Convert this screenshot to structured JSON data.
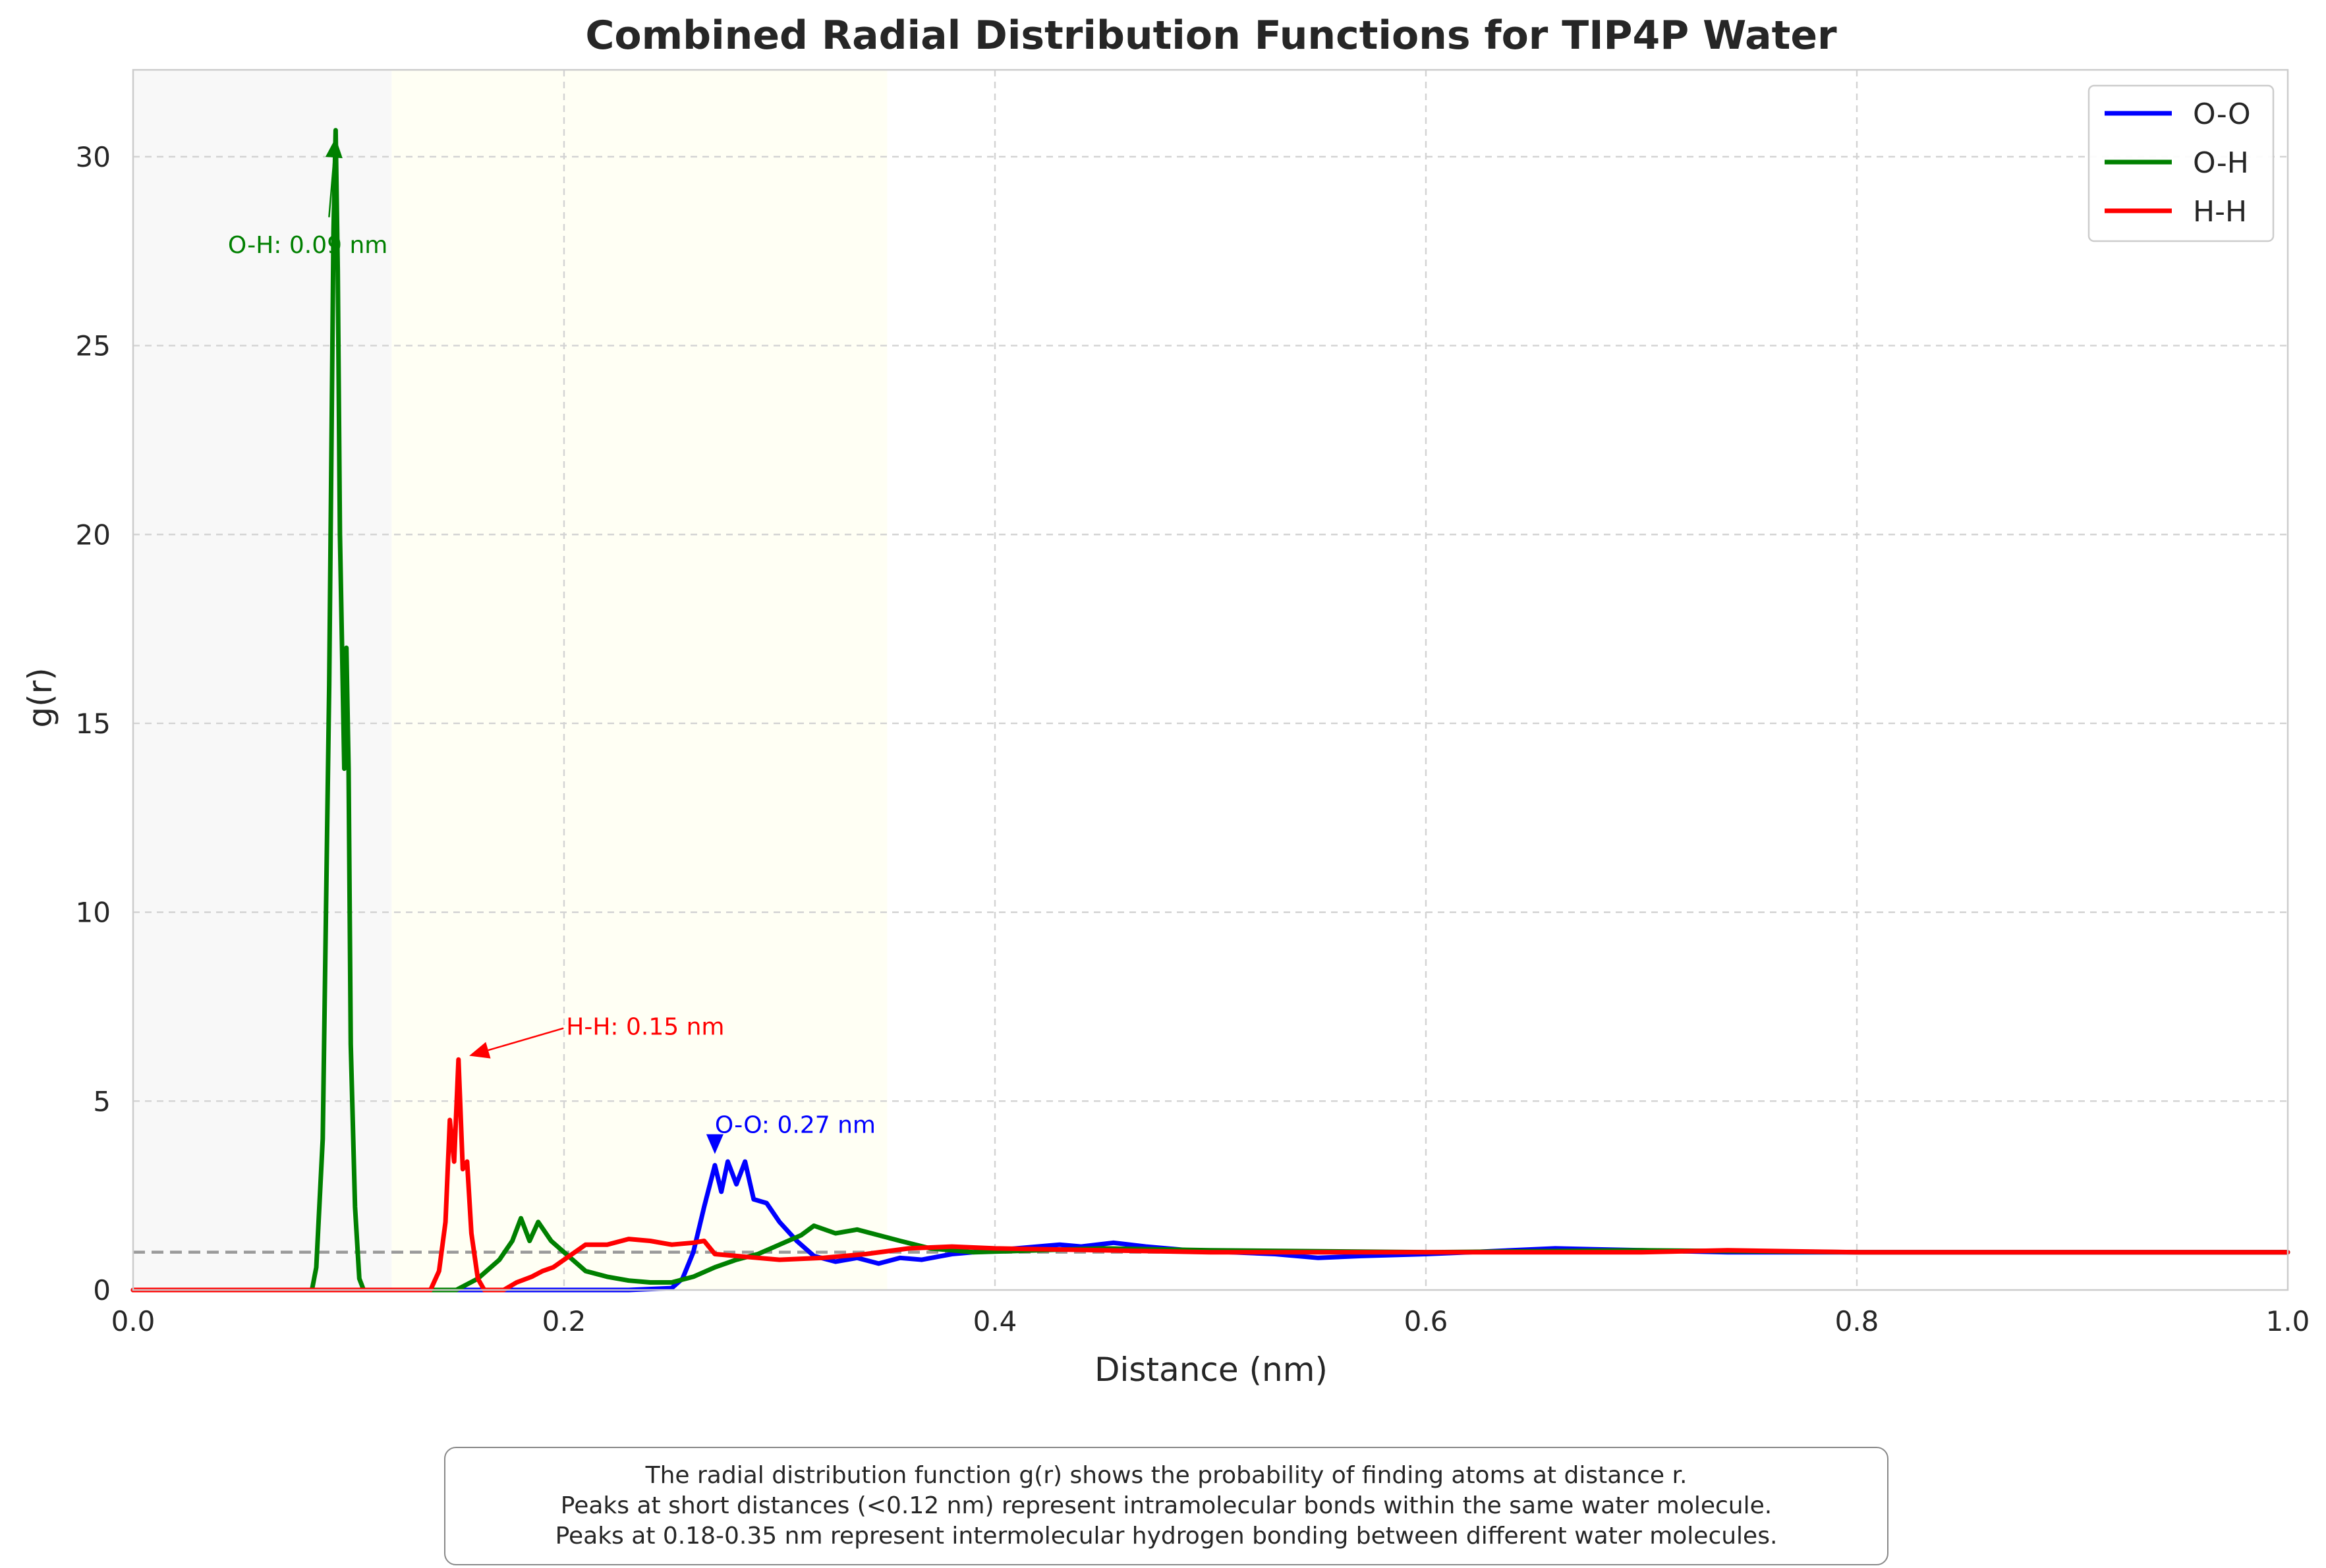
{
  "chart_data": {
    "type": "line",
    "title": "Combined Radial Distribution Functions for TIP4P Water",
    "xlabel": "Distance (nm)",
    "ylabel": "g(r)",
    "xlim": [
      0.0,
      1.0
    ],
    "ylim": [
      0,
      32.3
    ],
    "x_ticks": [
      0.0,
      0.2,
      0.4,
      0.6,
      0.8,
      1.0
    ],
    "x_tick_labels": [
      "0.0",
      "0.2",
      "0.4",
      "0.6",
      "0.8",
      "1.0"
    ],
    "y_ticks": [
      0,
      5,
      10,
      15,
      20,
      25,
      30
    ],
    "y_tick_labels": [
      "0",
      "5",
      "10",
      "15",
      "20",
      "25",
      "30"
    ],
    "grid": true,
    "legend": "top-right",
    "reference_line": {
      "y": 1.0,
      "color": "#999999",
      "style": "dashed"
    },
    "shaded_regions": [
      {
        "x": [
          0.0,
          0.12
        ],
        "color": "#f8f8f8"
      },
      {
        "x": [
          0.12,
          0.35
        ],
        "color": "#fffff4"
      }
    ],
    "series": [
      {
        "name": "O-O",
        "color": "#0000ff",
        "points": [
          [
            0,
            0
          ],
          [
            0.23,
            0
          ],
          [
            0.25,
            0.05
          ],
          [
            0.255,
            0.3
          ],
          [
            0.26,
            1.0
          ],
          [
            0.265,
            2.2
          ],
          [
            0.27,
            3.3
          ],
          [
            0.273,
            2.6
          ],
          [
            0.276,
            3.4
          ],
          [
            0.28,
            2.8
          ],
          [
            0.284,
            3.4
          ],
          [
            0.288,
            2.4
          ],
          [
            0.294,
            2.3
          ],
          [
            0.3,
            1.8
          ],
          [
            0.308,
            1.3
          ],
          [
            0.316,
            0.9
          ],
          [
            0.326,
            0.75
          ],
          [
            0.336,
            0.85
          ],
          [
            0.346,
            0.7
          ],
          [
            0.356,
            0.85
          ],
          [
            0.366,
            0.8
          ],
          [
            0.38,
            0.95
          ],
          [
            0.39,
            1.0
          ],
          [
            0.41,
            1.1
          ],
          [
            0.43,
            1.2
          ],
          [
            0.44,
            1.15
          ],
          [
            0.455,
            1.25
          ],
          [
            0.47,
            1.15
          ],
          [
            0.49,
            1.05
          ],
          [
            0.51,
            1.0
          ],
          [
            0.53,
            0.95
          ],
          [
            0.55,
            0.85
          ],
          [
            0.57,
            0.9
          ],
          [
            0.6,
            0.95
          ],
          [
            0.62,
            1.0
          ],
          [
            0.64,
            1.05
          ],
          [
            0.66,
            1.1
          ],
          [
            0.7,
            1.05
          ],
          [
            0.74,
            1.0
          ],
          [
            0.8,
            1.0
          ],
          [
            0.9,
            1.0
          ],
          [
            1.0,
            1.0
          ]
        ]
      },
      {
        "name": "O-H",
        "color": "#008000",
        "points": [
          [
            0,
            0
          ],
          [
            0.083,
            0
          ],
          [
            0.085,
            0.6
          ],
          [
            0.088,
            4.0
          ],
          [
            0.091,
            16.0
          ],
          [
            0.093,
            28.0
          ],
          [
            0.094,
            30.7
          ],
          [
            0.095,
            27.0
          ],
          [
            0.096,
            20.0
          ],
          [
            0.098,
            13.8
          ],
          [
            0.099,
            17.0
          ],
          [
            0.1,
            13.8
          ],
          [
            0.101,
            6.5
          ],
          [
            0.103,
            2.2
          ],
          [
            0.105,
            0.3
          ],
          [
            0.107,
            0
          ],
          [
            0.15,
            0
          ],
          [
            0.16,
            0.3
          ],
          [
            0.17,
            0.8
          ],
          [
            0.176,
            1.3
          ],
          [
            0.18,
            1.9
          ],
          [
            0.184,
            1.3
          ],
          [
            0.188,
            1.8
          ],
          [
            0.194,
            1.3
          ],
          [
            0.2,
            1.0
          ],
          [
            0.21,
            0.5
          ],
          [
            0.22,
            0.35
          ],
          [
            0.23,
            0.25
          ],
          [
            0.24,
            0.2
          ],
          [
            0.25,
            0.2
          ],
          [
            0.26,
            0.35
          ],
          [
            0.27,
            0.6
          ],
          [
            0.28,
            0.8
          ],
          [
            0.29,
            0.95
          ],
          [
            0.3,
            1.2
          ],
          [
            0.31,
            1.45
          ],
          [
            0.316,
            1.7
          ],
          [
            0.326,
            1.5
          ],
          [
            0.336,
            1.6
          ],
          [
            0.346,
            1.45
          ],
          [
            0.356,
            1.3
          ],
          [
            0.37,
            1.1
          ],
          [
            0.39,
            1.0
          ],
          [
            0.42,
            1.05
          ],
          [
            0.45,
            1.1
          ],
          [
            0.5,
            1.05
          ],
          [
            0.6,
            1.0
          ],
          [
            0.7,
            1.05
          ],
          [
            0.8,
            1.0
          ],
          [
            0.9,
            1.0
          ],
          [
            1.0,
            1.0
          ]
        ]
      },
      {
        "name": "H-H",
        "color": "#ff0000",
        "points": [
          [
            0,
            0
          ],
          [
            0.138,
            0
          ],
          [
            0.142,
            0.5
          ],
          [
            0.145,
            1.8
          ],
          [
            0.147,
            4.5
          ],
          [
            0.149,
            3.4
          ],
          [
            0.151,
            6.1
          ],
          [
            0.153,
            3.2
          ],
          [
            0.155,
            3.4
          ],
          [
            0.157,
            1.5
          ],
          [
            0.16,
            0.3
          ],
          [
            0.163,
            0
          ],
          [
            0.172,
            0
          ],
          [
            0.178,
            0.2
          ],
          [
            0.185,
            0.35
          ],
          [
            0.19,
            0.5
          ],
          [
            0.195,
            0.6
          ],
          [
            0.2,
            0.8
          ],
          [
            0.205,
            1.0
          ],
          [
            0.21,
            1.2
          ],
          [
            0.22,
            1.2
          ],
          [
            0.23,
            1.35
          ],
          [
            0.24,
            1.3
          ],
          [
            0.25,
            1.2
          ],
          [
            0.26,
            1.25
          ],
          [
            0.265,
            1.3
          ],
          [
            0.27,
            0.95
          ],
          [
            0.28,
            0.9
          ],
          [
            0.29,
            0.85
          ],
          [
            0.3,
            0.8
          ],
          [
            0.32,
            0.85
          ],
          [
            0.34,
            0.95
          ],
          [
            0.36,
            1.1
          ],
          [
            0.38,
            1.15
          ],
          [
            0.4,
            1.1
          ],
          [
            0.45,
            1.05
          ],
          [
            0.5,
            1.0
          ],
          [
            0.6,
            1.0
          ],
          [
            0.7,
            1.0
          ],
          [
            0.74,
            1.05
          ],
          [
            0.8,
            1.0
          ],
          [
            0.9,
            1.0
          ],
          [
            1.0,
            1.0
          ]
        ]
      }
    ],
    "annotations": [
      {
        "text": "O-H: 0.09 nm",
        "color": "#008000",
        "x_text": 0.044,
        "y_text": 27.7,
        "x_arrow": 0.094,
        "y_arrow": 30.5
      },
      {
        "text": "H-H: 0.15 nm",
        "color": "#ff0000",
        "x_text": 0.201,
        "y_text": 7.0,
        "x_arrow": 0.156,
        "y_arrow": 6.2
      },
      {
        "text": "O-O: 0.27 nm",
        "color": "#0000ff",
        "x_text": 0.27,
        "y_text": 4.4,
        "x_arrow": 0.27,
        "y_arrow": 3.6
      }
    ]
  },
  "caption": {
    "line1": "The radial distribution function g(r) shows the probability of finding atoms at distance r.",
    "line2": "Peaks at short distances (<0.12 nm) represent intramolecular bonds within the same water molecule.",
    "line3": "Peaks at 0.18-0.35 nm represent intermolecular hydrogen bonding between different water molecules."
  }
}
